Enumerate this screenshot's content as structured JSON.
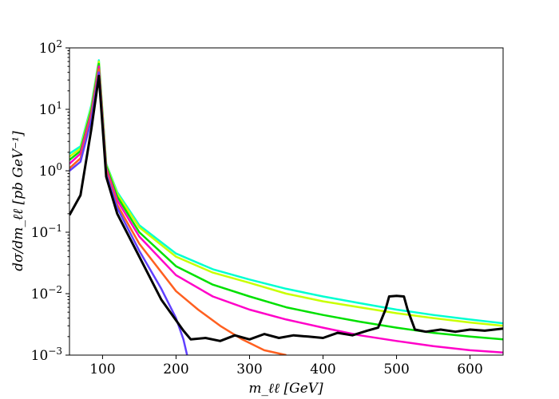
{
  "chart_data": {
    "type": "line",
    "title": "",
    "xlabel": "m_ℓℓ [GeV]",
    "ylabel": "dσ/dm_ℓℓ [pb GeV⁻¹]",
    "xlim": [
      55,
      645
    ],
    "ylim": [
      0.001,
      100
    ],
    "yscale": "log",
    "grid": false,
    "legend": "none",
    "x_ticks": [
      100,
      200,
      300,
      400,
      500,
      600
    ],
    "x_tick_labels": [
      "100",
      "200",
      "300",
      "400",
      "500",
      "600"
    ],
    "y_ticks": [
      0.001,
      0.01,
      0.1,
      1,
      10,
      100
    ],
    "y_tick_labels": [
      {
        "base": "10",
        "exp": "−3"
      },
      {
        "base": "10",
        "exp": "−2"
      },
      {
        "base": "10",
        "exp": "−1"
      },
      {
        "base": "10",
        "exp": "0"
      },
      {
        "base": "10",
        "exp": "1"
      },
      {
        "base": "10",
        "exp": "2"
      }
    ],
    "series": [
      {
        "color": "#00ffd0",
        "x": [
          55,
          70,
          85,
          95,
          105,
          120,
          150,
          200,
          250,
          300,
          350,
          400,
          450,
          500,
          550,
          600,
          645
        ],
        "y": [
          1.9,
          2.5,
          12,
          63,
          1.3,
          0.45,
          0.13,
          0.045,
          0.025,
          0.017,
          0.012,
          0.009,
          0.007,
          0.0055,
          0.0045,
          0.0038,
          0.0033
        ]
      },
      {
        "color": "#c8ff00",
        "x": [
          55,
          70,
          85,
          95,
          105,
          120,
          150,
          200,
          250,
          300,
          350,
          400,
          450,
          500,
          550,
          600,
          645
        ],
        "y": [
          1.7,
          2.3,
          11,
          60,
          1.25,
          0.42,
          0.12,
          0.04,
          0.022,
          0.015,
          0.01,
          0.0075,
          0.006,
          0.0048,
          0.004,
          0.0034,
          0.003
        ]
      },
      {
        "color": "#00e000",
        "x": [
          55,
          70,
          85,
          95,
          105,
          120,
          150,
          200,
          250,
          300,
          350,
          400,
          450,
          500,
          550,
          600,
          645
        ],
        "y": [
          1.5,
          2.1,
          10,
          55,
          1.2,
          0.38,
          0.1,
          0.028,
          0.014,
          0.009,
          0.006,
          0.0045,
          0.0035,
          0.0028,
          0.0023,
          0.002,
          0.0018
        ]
      },
      {
        "color": "#ff00c8",
        "x": [
          55,
          70,
          85,
          95,
          105,
          120,
          150,
          200,
          250,
          300,
          350,
          400,
          450,
          500,
          550,
          600,
          645
        ],
        "y": [
          1.3,
          1.9,
          9,
          50,
          1.1,
          0.33,
          0.085,
          0.02,
          0.009,
          0.0055,
          0.0038,
          0.0028,
          0.0021,
          0.0017,
          0.0014,
          0.0012,
          0.0011
        ]
      },
      {
        "color": "#ff6020",
        "x": [
          55,
          70,
          85,
          95,
          105,
          120,
          150,
          200,
          230,
          260,
          290,
          320,
          350
        ],
        "y": [
          1.1,
          1.6,
          8,
          45,
          1.0,
          0.28,
          0.065,
          0.011,
          0.0055,
          0.003,
          0.0018,
          0.0012,
          0.001
        ]
      },
      {
        "color": "#6040ff",
        "x": [
          55,
          70,
          85,
          95,
          105,
          120,
          150,
          180,
          200,
          210,
          215
        ],
        "y": [
          1.0,
          1.4,
          7,
          40,
          0.9,
          0.25,
          0.05,
          0.012,
          0.004,
          0.0018,
          0.001
        ]
      },
      {
        "color": "#000000",
        "x": [
          55,
          70,
          85,
          95,
          105,
          120,
          150,
          180,
          210,
          220,
          240,
          260,
          280,
          300,
          320,
          340,
          360,
          380,
          400,
          420,
          440,
          460,
          475,
          485,
          490,
          500,
          510,
          515,
          525,
          540,
          560,
          580,
          600,
          620,
          645
        ],
        "y": [
          0.19,
          0.4,
          5,
          35,
          0.8,
          0.2,
          0.04,
          0.008,
          0.0025,
          0.0018,
          0.0019,
          0.0017,
          0.0021,
          0.0018,
          0.0022,
          0.0019,
          0.0021,
          0.002,
          0.0019,
          0.0023,
          0.0021,
          0.0025,
          0.0028,
          0.0055,
          0.009,
          0.0092,
          0.009,
          0.0055,
          0.0026,
          0.0024,
          0.0026,
          0.0024,
          0.0026,
          0.0025,
          0.0027
        ]
      }
    ]
  }
}
